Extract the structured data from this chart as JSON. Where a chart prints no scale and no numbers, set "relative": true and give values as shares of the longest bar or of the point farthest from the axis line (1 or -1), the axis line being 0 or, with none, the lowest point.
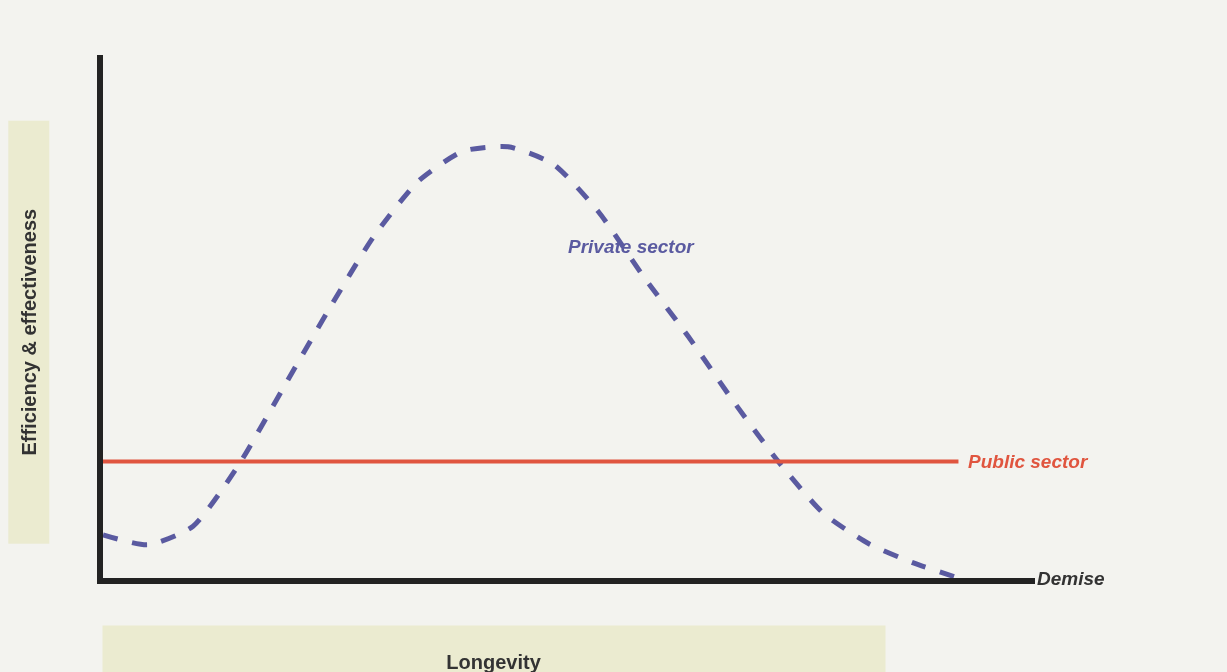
{
  "chart_data": {
    "type": "line",
    "relative": true,
    "xlabel": "Longevity",
    "ylabel": "Efficiency & effectiveness",
    "categories": [
      null,
      null,
      null,
      null,
      null,
      null,
      null,
      null,
      null,
      null,
      null,
      null,
      null,
      null,
      null,
      null,
      null,
      null,
      null,
      null,
      null
    ],
    "series": [
      {
        "name": "Private sector",
        "color": "#5a5aa0",
        "line_style": "dashed",
        "values": [
          0.1,
          0.077,
          0.12,
          0.26,
          0.44,
          0.62,
          0.79,
          0.92,
          0.99,
          1.0,
          0.96,
          0.85,
          0.7,
          0.56,
          0.41,
          0.27,
          0.15,
          0.08,
          0.035,
          0,
          null
        ]
      },
      {
        "name": "Public sector",
        "color": "#e0553f",
        "line_style": "solid",
        "values": [
          0.27,
          0.27,
          0.27,
          0.27,
          0.27,
          0.27,
          0.27,
          0.27,
          0.27,
          0.27,
          0.27,
          0.27,
          0.27,
          0.27,
          0.27,
          0.27,
          0.27,
          0.27,
          0.27,
          0.27,
          null
        ]
      }
    ],
    "annotations": [
      "Demise"
    ],
    "legend": false,
    "grid": false,
    "marker": "none"
  }
}
